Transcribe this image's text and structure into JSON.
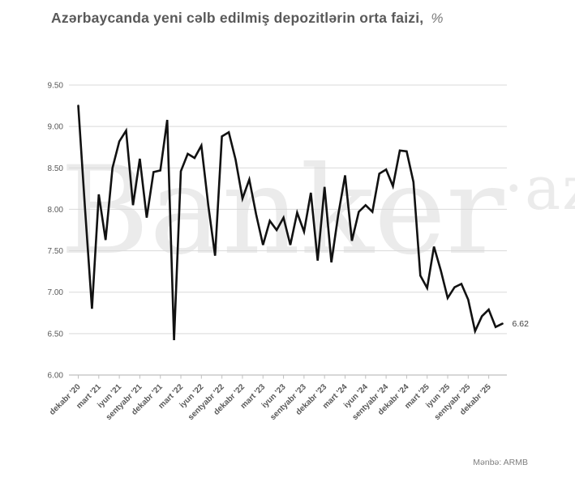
{
  "header": {
    "title": "Azərbaycanda yeni cəlb edilmiş depozitlərin orta faizi,",
    "title_unit": "%"
  },
  "watermark": {
    "main": "Banker",
    "suffix": "·az"
  },
  "footer": {
    "source": "Mənbə: ARMB"
  },
  "chart_data": {
    "type": "line",
    "title": "Azərbaycanda yeni cəlb edilmiş depozitlərin orta faizi, %",
    "x_tick_labels": [
      "dekabr '20",
      "mart '21",
      "iyun '21",
      "sentyabr '21",
      "dekabr '21",
      "mart '22",
      "iyun '22",
      "sentyabr '22",
      "dekabr '22",
      "mart '23",
      "iyun '23",
      "sentyabr '23",
      "dekabr '23",
      "mart '24",
      "iyun '24",
      "sentyabr '24",
      "dekabr '24",
      "mart '25",
      "iyun '25",
      "sentyabr '25",
      "dekabr '25"
    ],
    "label_every_n_points": 3,
    "values": [
      9.25,
      8.0,
      6.8,
      8.18,
      7.63,
      8.5,
      8.82,
      8.95,
      8.05,
      8.61,
      7.9,
      8.45,
      8.47,
      9.08,
      6.42,
      8.46,
      8.67,
      8.62,
      8.77,
      8.05,
      7.44,
      8.88,
      8.93,
      8.6,
      8.13,
      8.36,
      7.94,
      7.57,
      7.86,
      7.75,
      7.9,
      7.57,
      7.96,
      7.73,
      8.2,
      7.38,
      8.27,
      7.36,
      7.93,
      8.41,
      7.62,
      7.97,
      8.05,
      7.97,
      8.43,
      8.48,
      8.28,
      8.71,
      8.7,
      8.33,
      7.2,
      7.05,
      7.55,
      7.26,
      6.93,
      7.06,
      7.1,
      6.91,
      6.53,
      6.71,
      6.79,
      6.58,
      6.62
    ],
    "last_point_label": "6.62",
    "ylim": [
      6.0,
      9.5
    ],
    "y_tick_labels": [
      "9.50",
      "9.00",
      "8.50",
      "8.00",
      "7.50",
      "7.00",
      "6.50",
      "6.00"
    ],
    "grid": "horizontal",
    "legend": "none",
    "line_color": "#111111",
    "gridline_color": "#d9d9d9",
    "axis_color": "#bfbfbf",
    "label_color": "#595959"
  }
}
